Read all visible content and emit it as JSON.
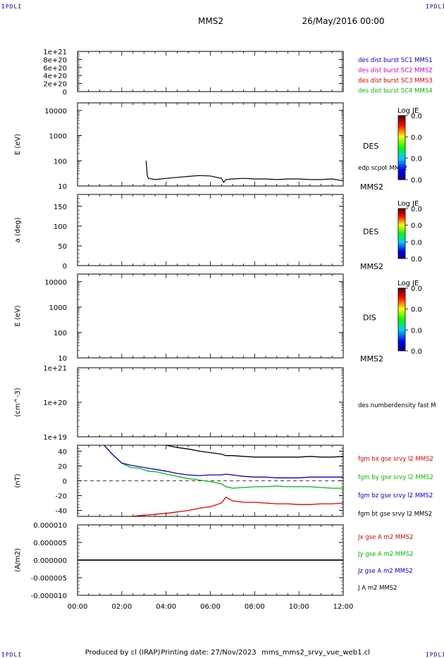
{
  "header": {
    "corner_label": "IPDLI",
    "spacecraft": "MMS2",
    "date": "26/May/2016 00:00"
  },
  "footer": {
    "credit": "Produced by cl (IRAP)",
    "printing_date": "Printing date: 27/Nov/2023",
    "file": "mms_mms2_srvy_vue_web1.cl"
  },
  "x_axis": {
    "range_hours": [
      0,
      12
    ],
    "tick_labels": [
      "00:00",
      "02:00",
      "04:00",
      "06:00",
      "08:00",
      "10:00",
      "12:00"
    ]
  },
  "colorbar": {
    "title": "Log JE",
    "tick_labels": [
      "0.0",
      "0.0",
      "0.0",
      "0.0"
    ]
  },
  "colors": {
    "blue": "#0000cc",
    "magenta": "#cc00cc",
    "red": "#dd0000",
    "green": "#00bb00",
    "black": "#000000"
  },
  "chart_data": [
    {
      "type": "line",
      "panel": "burst",
      "ylabel": "",
      "y_ticks": [
        "0",
        "2e+20",
        "4e+20",
        "6e+20",
        "8e+20",
        "1e+21"
      ],
      "ylim": [
        0,
        1e+21
      ],
      "series": [
        {
          "name": "des dist burst SC1 MMS1",
          "color": "blue"
        },
        {
          "name": "des dist burst SC2 MMS2",
          "color": "magenta"
        },
        {
          "name": "des dist burst SC3 MMS3",
          "color": "red"
        },
        {
          "name": "des dist burst SC4 MMS4",
          "color": "green"
        }
      ]
    },
    {
      "type": "heatmap",
      "panel": "des_energy",
      "ylabel": "E (eV)",
      "y_scale": "log",
      "ylim": [
        10,
        20000
      ],
      "y_ticks": [
        "10",
        "100",
        "1000",
        "10000"
      ],
      "right_labels": [
        "DES",
        "MMS2"
      ],
      "series": [
        {
          "name": "edp scpot MMS2",
          "color": "black",
          "x": [
            3.1,
            3.15,
            3.2,
            3.5,
            4.0,
            4.5,
            5.0,
            5.5,
            6.0,
            6.5,
            6.6,
            6.7,
            7.0,
            7.5,
            8.0,
            8.5,
            9.0,
            9.5,
            10.0,
            10.5,
            11.0,
            11.5,
            12.0
          ],
          "values": [
            100,
            26,
            20,
            18,
            20,
            22,
            24,
            26,
            25,
            20,
            14,
            18,
            19,
            20,
            19,
            19,
            18,
            19,
            19,
            18,
            18,
            19,
            16
          ]
        }
      ]
    },
    {
      "type": "heatmap",
      "panel": "des_pitch",
      "ylabel": "a (deg)",
      "ylim": [
        0,
        180
      ],
      "y_ticks": [
        "0",
        "50",
        "100",
        "150"
      ],
      "right_labels": [
        "DES",
        "MMS2"
      ]
    },
    {
      "type": "heatmap",
      "panel": "dis_energy",
      "ylabel": "E (eV)",
      "y_scale": "log",
      "ylim": [
        10,
        20000
      ],
      "y_ticks": [
        "10",
        "100",
        "1000",
        "10000"
      ],
      "right_labels": [
        "DIS",
        "MMS2"
      ]
    },
    {
      "type": "line",
      "panel": "density",
      "ylabel": "(cm^-3)",
      "y_scale": "log",
      "ylim": [
        1e+19,
        1e+21
      ],
      "y_ticks": [
        "1e+19",
        "1e+20",
        "1e+21"
      ],
      "series": [
        {
          "name": "des numberdensity fast M",
          "color": "black"
        }
      ]
    },
    {
      "type": "line",
      "panel": "fgm",
      "ylabel": "(nT)",
      "ylim": [
        -48,
        48
      ],
      "y_ticks": [
        "-40",
        "-20",
        "0",
        "20",
        "40"
      ],
      "zero_line": true,
      "x": [
        0.8,
        1.2,
        1.6,
        2.0,
        2.4,
        2.8,
        3.2,
        3.6,
        4.0,
        4.5,
        5.0,
        5.5,
        6.0,
        6.5,
        6.7,
        7.0,
        7.5,
        8.0,
        8.5,
        9.0,
        9.5,
        10.0,
        10.5,
        11.0,
        11.5,
        12.0
      ],
      "series": [
        {
          "name": "fgm bx gse srvy l2 MMS2",
          "color": "red",
          "values": [
            null,
            null,
            null,
            null,
            -48,
            -47,
            -46,
            -45,
            -44,
            -42,
            -40,
            -37,
            -35,
            -30,
            -22,
            -27,
            -29,
            -29,
            -30,
            -31,
            -31,
            -32,
            -32,
            -31,
            -31,
            -30
          ]
        },
        {
          "name": "fgm by gse srvy l2 MMS2",
          "color": "green",
          "values": [
            null,
            48,
            35,
            24,
            18,
            17,
            13,
            12,
            9,
            6,
            3,
            1,
            -1,
            -4,
            -8,
            -10,
            -9,
            -8,
            -8,
            -7,
            -8,
            -8,
            -8,
            -9,
            -10,
            -10
          ]
        },
        {
          "name": "fgm bz gse srvy l2 MMS2",
          "color": "blue",
          "values": [
            null,
            48,
            35,
            24,
            21,
            19,
            17,
            15,
            13,
            10,
            8,
            7,
            8,
            8,
            9,
            8,
            6,
            5,
            5,
            4,
            4,
            4,
            5,
            5,
            5,
            5
          ]
        },
        {
          "name": "fgm bt gse srvy l2 MMS2",
          "color": "black",
          "values": [
            null,
            null,
            null,
            null,
            null,
            null,
            null,
            null,
            48,
            45,
            43,
            40,
            38,
            36,
            34,
            34,
            33,
            32,
            32,
            32,
            32,
            32,
            33,
            32,
            32,
            33
          ]
        }
      ]
    },
    {
      "type": "line",
      "panel": "current",
      "ylabel": "(A/m2)",
      "ylim": [
        -1e-05,
        1e-05
      ],
      "y_ticks": [
        "-0.000010",
        "-0.000005",
        "0.000000",
        "0.000005",
        "0.000010"
      ],
      "x": [
        0,
        12
      ],
      "series": [
        {
          "name": "Jx gse A m2 MMS2",
          "color": "red",
          "values": [
            0,
            0
          ]
        },
        {
          "name": "Jy gse A m2 MMS2",
          "color": "green",
          "values": [
            0,
            0
          ]
        },
        {
          "name": "Jz gse A m2 MMS2",
          "color": "blue",
          "values": [
            0,
            0
          ]
        },
        {
          "name": "J A m2 MMS2",
          "color": "black",
          "values": [
            0,
            0
          ]
        }
      ]
    }
  ]
}
